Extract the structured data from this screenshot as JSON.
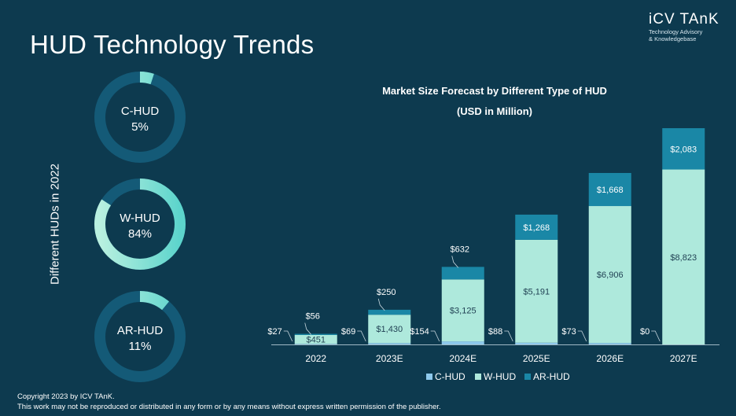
{
  "page": {
    "title": "HUD Technology Trends",
    "brand": {
      "name": "iCV TAnK",
      "tagline_1": "Technology Advisory",
      "tagline_2": "& Knowledgebase"
    },
    "side_label": "Different HUDs in 2022",
    "footer_line_1": "Copyright  2023 by ICV TAnK.",
    "footer_line_2": "This work may not be reproduced or distributed in any form or by any means without express written permission of the publisher."
  },
  "colors": {
    "background": "#0d3a4f",
    "c_hud": "#8ec9ec",
    "w_hud": "#aee9dc",
    "ar_hud": "#1a87a6",
    "donut_track": "#145a77"
  },
  "chart_data": [
    {
      "type": "pie",
      "subtype": "donut",
      "title": "",
      "xlabel": "Different HUDs in 2022",
      "ylabel": "",
      "items": [
        {
          "label": "C-HUD",
          "value": 5,
          "display": "5%"
        },
        {
          "label": "W-HUD",
          "value": 84,
          "display": "84%"
        },
        {
          "label": "AR-HUD",
          "value": 11,
          "display": "11%"
        }
      ]
    },
    {
      "type": "bar",
      "stacked": true,
      "title": "Market Size Forecast by Different Type of HUD",
      "subtitle": "(USD in Million)",
      "xlabel": "",
      "ylabel": "",
      "categories": [
        "2022",
        "2023E",
        "2024E",
        "2025E",
        "2026E",
        "2027E"
      ],
      "series": [
        {
          "name": "C-HUD",
          "values": [
            27,
            69,
            154,
            88,
            73,
            0
          ],
          "labels": [
            "$27",
            "$69",
            "$154",
            "$88",
            "$73",
            "$0"
          ]
        },
        {
          "name": "W-HUD",
          "values": [
            451,
            1430,
            3125,
            5191,
            6906,
            8823
          ],
          "labels": [
            "$451",
            "$1,430",
            "$3,125",
            "$5,191",
            "$6,906",
            "$8,823"
          ]
        },
        {
          "name": "AR-HUD",
          "values": [
            56,
            250,
            632,
            1268,
            1668,
            2083
          ],
          "labels": [
            "$56",
            "$250",
            "$632",
            "$1,268",
            "$1,668",
            "$2,083"
          ]
        }
      ],
      "ylim": [
        0,
        10906
      ],
      "grid": false,
      "legend": "bottom"
    }
  ]
}
